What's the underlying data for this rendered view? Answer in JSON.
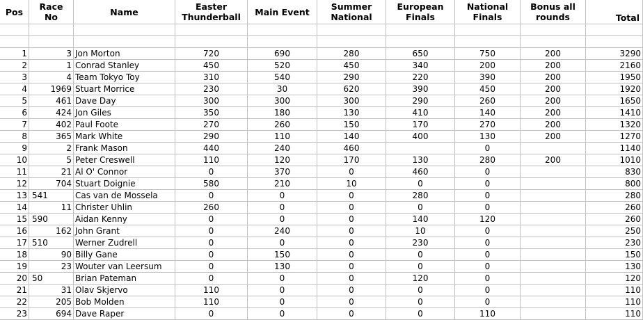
{
  "headers": {
    "pos": "Pos",
    "race_no_1": "Race",
    "race_no_2": "No",
    "name": "Name",
    "e1_1": "Easter",
    "e1_2": "Thunderball",
    "e2": "Main Event",
    "e3_1": "Summer",
    "e3_2": "National",
    "e4_1": "European",
    "e4_2": "Finals",
    "e5_1": "National",
    "e5_2": "Finals",
    "bonus_1": "Bonus all",
    "bonus_2": "rounds",
    "total": "Total"
  },
  "rows": [
    {
      "pos": "1",
      "no": "3",
      "name": "Jon Morton",
      "e1": "720",
      "e2": "690",
      "e3": "280",
      "e4": "650",
      "e5": "750",
      "bonus": "200",
      "total": "3290",
      "no_align": "right"
    },
    {
      "pos": "2",
      "no": "1",
      "name": "Conrad Stanley",
      "e1": "450",
      "e2": "520",
      "e3": "450",
      "e4": "340",
      "e5": "200",
      "bonus": "200",
      "total": "2160",
      "no_align": "right"
    },
    {
      "pos": "3",
      "no": "4",
      "name": "Team Tokyo Toy",
      "e1": "310",
      "e2": "540",
      "e3": "290",
      "e4": "220",
      "e5": "390",
      "bonus": "200",
      "total": "1950",
      "no_align": "right"
    },
    {
      "pos": "4",
      "no": "1969",
      "name": "Stuart Morrice",
      "e1": "230",
      "e2": "30",
      "e3": "620",
      "e4": "390",
      "e5": "450",
      "bonus": "200",
      "total": "1920",
      "no_align": "right"
    },
    {
      "pos": "5",
      "no": "461",
      "name": "Dave Day",
      "e1": "300",
      "e2": "300",
      "e3": "300",
      "e4": "290",
      "e5": "260",
      "bonus": "200",
      "total": "1650",
      "no_align": "right"
    },
    {
      "pos": "6",
      "no": "424",
      "name": "Jon Giles",
      "e1": "350",
      "e2": "180",
      "e3": "130",
      "e4": "410",
      "e5": "140",
      "bonus": "200",
      "total": "1410",
      "no_align": "right"
    },
    {
      "pos": "7",
      "no": "402",
      "name": "Paul Foote",
      "e1": "270",
      "e2": "260",
      "e3": "150",
      "e4": "170",
      "e5": "270",
      "bonus": "200",
      "total": "1320",
      "no_align": "right"
    },
    {
      "pos": "8",
      "no": "365",
      "name": "Mark White",
      "e1": "290",
      "e2": "110",
      "e3": "140",
      "e4": "400",
      "e5": "130",
      "bonus": "200",
      "total": "1270",
      "no_align": "right"
    },
    {
      "pos": "9",
      "no": "2",
      "name": "Frank Mason",
      "e1": "440",
      "e2": "240",
      "e3": "460",
      "e4": "",
      "e5": "0",
      "bonus": "",
      "total": "1140",
      "no_align": "right"
    },
    {
      "pos": "10",
      "no": "5",
      "name": "Peter Creswell",
      "e1": "110",
      "e2": "120",
      "e3": "170",
      "e4": "130",
      "e5": "280",
      "bonus": "200",
      "total": "1010",
      "no_align": "right"
    },
    {
      "pos": "11",
      "no": "21",
      "name": "Al O' Connor",
      "e1": "0",
      "e2": "370",
      "e3": "0",
      "e4": "460",
      "e5": "0",
      "bonus": "",
      "total": "830",
      "no_align": "right"
    },
    {
      "pos": "12",
      "no": "704",
      "name": "Stuart Doignie",
      "e1": "580",
      "e2": "210",
      "e3": "10",
      "e4": "0",
      "e5": "0",
      "bonus": "",
      "total": "800",
      "no_align": "right"
    },
    {
      "pos": "13",
      "no": "541",
      "name": "Cas van de Mossela",
      "e1": "0",
      "e2": "0",
      "e3": "0",
      "e4": "280",
      "e5": "0",
      "bonus": "",
      "total": "280",
      "no_align": "left"
    },
    {
      "pos": "14",
      "no": "11",
      "name": "Christer Uhlin",
      "e1": "260",
      "e2": "0",
      "e3": "0",
      "e4": "0",
      "e5": "0",
      "bonus": "",
      "total": "260",
      "no_align": "right"
    },
    {
      "pos": "15",
      "no": "590",
      "name": "Aidan Kenny",
      "e1": "0",
      "e2": "0",
      "e3": "0",
      "e4": "140",
      "e5": "120",
      "bonus": "",
      "total": "260",
      "no_align": "left"
    },
    {
      "pos": "16",
      "no": "162",
      "name": "John Grant",
      "e1": "0",
      "e2": "240",
      "e3": "0",
      "e4": "10",
      "e5": "0",
      "bonus": "",
      "total": "250",
      "no_align": "right"
    },
    {
      "pos": "17",
      "no": "510",
      "name": "Werner Zudrell",
      "e1": "0",
      "e2": "0",
      "e3": "0",
      "e4": "230",
      "e5": "0",
      "bonus": "",
      "total": "230",
      "no_align": "left"
    },
    {
      "pos": "18",
      "no": "90",
      "name": "Billy Gane",
      "e1": "0",
      "e2": "150",
      "e3": "0",
      "e4": "0",
      "e5": "0",
      "bonus": "",
      "total": "150",
      "no_align": "right"
    },
    {
      "pos": "19",
      "no": "23",
      "name": "Wouter van Leersum",
      "e1": "0",
      "e2": "130",
      "e3": "0",
      "e4": "0",
      "e5": "0",
      "bonus": "",
      "total": "130",
      "no_align": "right"
    },
    {
      "pos": "20",
      "no": "50",
      "name": "Brian Pateman",
      "e1": "0",
      "e2": "0",
      "e3": "0",
      "e4": "120",
      "e5": "0",
      "bonus": "",
      "total": "120",
      "no_align": "left"
    },
    {
      "pos": "21",
      "no": "31",
      "name": "Olav Skjervo",
      "e1": "110",
      "e2": "0",
      "e3": "0",
      "e4": "0",
      "e5": "0",
      "bonus": "",
      "total": "110",
      "no_align": "right"
    },
    {
      "pos": "22",
      "no": "205",
      "name": "Bob Molden",
      "e1": "110",
      "e2": "0",
      "e3": "0",
      "e4": "0",
      "e5": "0",
      "bonus": "",
      "total": "110",
      "no_align": "right"
    },
    {
      "pos": "23",
      "no": "694",
      "name": "Dave Raper",
      "e1": "0",
      "e2": "0",
      "e3": "0",
      "e4": "0",
      "e5": "110",
      "bonus": "",
      "total": "110",
      "no_align": "right"
    }
  ]
}
